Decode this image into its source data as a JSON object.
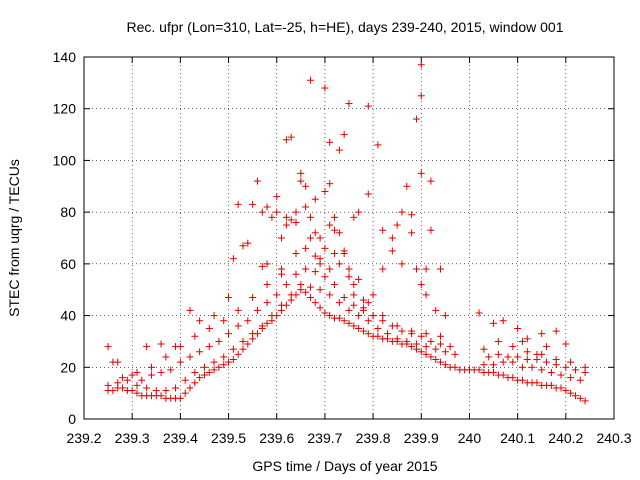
{
  "chart_data": {
    "type": "scatter",
    "title": "Rec. ufpr (Lon=310, Lat=-25, h=HE), days 239-240, 2015, window 001",
    "xlabel": "GPS time / Days of year 2015",
    "ylabel": "STEC from uqrg / TECUs",
    "xlim": [
      239.2,
      240.3
    ],
    "ylim": [
      0,
      140
    ],
    "xticks": [
      "239.2",
      "239.3",
      "239.4",
      "239.5",
      "239.6",
      "239.7",
      "239.8",
      "239.9",
      "240",
      "240.1",
      "240.2",
      "240.3"
    ],
    "yticks": [
      "0",
      "20",
      "40",
      "60",
      "80",
      "100",
      "120",
      "140"
    ],
    "grid": true,
    "marker": "plus",
    "color": "#e00000",
    "series": [
      {
        "x": [
          239.25,
          239.26,
          239.27,
          239.28,
          239.29,
          239.3,
          239.31,
          239.32,
          239.33,
          239.34,
          239.35,
          239.36,
          239.37,
          239.38,
          239.39,
          239.4,
          239.41,
          239.42,
          239.43,
          239.44,
          239.45,
          239.46,
          239.47,
          239.48,
          239.49,
          239.5,
          239.51,
          239.52,
          239.53,
          239.54,
          239.55,
          239.56,
          239.57,
          239.58,
          239.59,
          239.6,
          239.61,
          239.62,
          239.63,
          239.64,
          239.65,
          239.66,
          239.67,
          239.68,
          239.69,
          239.7,
          239.71,
          239.72,
          239.73,
          239.74,
          239.75,
          239.76,
          239.77,
          239.78,
          239.79,
          239.8,
          239.81,
          239.82,
          239.83,
          239.84,
          239.85,
          239.86,
          239.87,
          239.88,
          239.89,
          239.9,
          239.91,
          239.92,
          239.93,
          239.94,
          239.95,
          239.96,
          239.97,
          239.98,
          239.99,
          240.0,
          240.01,
          240.02,
          240.03,
          240.04,
          240.05,
          240.06,
          240.07,
          240.08,
          240.09,
          240.1,
          240.11,
          240.12,
          240.13,
          240.14,
          240.15,
          240.16,
          240.17,
          240.18,
          240.19,
          240.2,
          240.21,
          240.22,
          240.23,
          240.24,
          239.25,
          239.27,
          239.29,
          239.31,
          239.33,
          239.35,
          239.37,
          239.39,
          239.41,
          239.43,
          239.45,
          239.47,
          239.49,
          239.51,
          239.53,
          239.55,
          239.57,
          239.59,
          239.61,
          239.63,
          239.65,
          239.67,
          239.69,
          239.71,
          239.73,
          239.75,
          239.77,
          239.79,
          239.81,
          239.83,
          239.85,
          239.87,
          239.89,
          239.91,
          239.93,
          239.95,
          239.97,
          240.03,
          240.05,
          240.07,
          240.09,
          240.11,
          240.13,
          240.15,
          240.17,
          240.19,
          240.21,
          240.23,
          239.26,
          239.28,
          239.3,
          239.32,
          239.34,
          239.36,
          239.38,
          239.4,
          239.42,
          239.44,
          239.46,
          239.48,
          239.5,
          239.52,
          239.54,
          239.56,
          239.58,
          239.6,
          239.62,
          239.64,
          239.66,
          239.68,
          239.7,
          239.72,
          239.74,
          239.76,
          239.78,
          239.8,
          239.82,
          239.84,
          239.86,
          239.88,
          239.9,
          239.92,
          239.94,
          239.96,
          240.04,
          240.06,
          240.08,
          240.1,
          240.12,
          240.14,
          240.16,
          240.18,
          240.2,
          240.22,
          240.24,
          239.31,
          239.34,
          239.37,
          239.4,
          239.43,
          239.46,
          239.49,
          239.52,
          239.55,
          239.58,
          239.61,
          239.64,
          239.67,
          239.7,
          239.73,
          239.76,
          239.79,
          239.82,
          239.85,
          239.88,
          239.91,
          239.94,
          240.03,
          240.06,
          240.09,
          240.12,
          240.15,
          240.18,
          240.21,
          239.25,
          239.27,
          239.33,
          239.36,
          239.39,
          239.42,
          239.44,
          239.47,
          239.5,
          239.51,
          239.53,
          239.55,
          239.57,
          239.58,
          239.59,
          239.6,
          239.61,
          239.62,
          239.63,
          239.64,
          239.65,
          239.66,
          239.67,
          239.68,
          239.69,
          239.7,
          239.71,
          239.72,
          239.73,
          239.74,
          239.75,
          239.76,
          239.78,
          239.8,
          239.82,
          239.84,
          239.86,
          239.88,
          239.89,
          239.9,
          239.91,
          239.93,
          239.95,
          240.02,
          240.05,
          240.07,
          240.1,
          240.11,
          240.12,
          240.14,
          240.15,
          240.16,
          240.18,
          240.2,
          240.24,
          239.56,
          239.6,
          239.62,
          239.63,
          239.65,
          239.67,
          239.68,
          239.7,
          239.71,
          239.73,
          239.74,
          239.75,
          239.77,
          239.79,
          239.81,
          239.85,
          239.87,
          239.89,
          239.9,
          239.92,
          239.62,
          239.64,
          239.66,
          239.69,
          239.71,
          239.76,
          239.79,
          239.84,
          239.86,
          239.9,
          239.94,
          239.58,
          239.61,
          239.68,
          239.72,
          239.82,
          239.88,
          239.52,
          239.54,
          239.57,
          239.66,
          239.69,
          239.71,
          239.72,
          239.74,
          239.75,
          239.77,
          239.78,
          239.8,
          239.9,
          239.91,
          239.92
        ],
        "y": [
          11,
          11,
          12,
          12,
          11,
          11,
          10,
          9,
          9,
          9,
          9,
          9,
          8,
          8,
          8,
          8,
          10,
          12,
          14,
          16,
          17,
          18,
          19,
          20,
          21,
          22,
          23,
          25,
          27,
          29,
          31,
          33,
          35,
          37,
          38,
          40,
          42,
          44,
          46,
          48,
          50,
          49,
          47,
          45,
          43,
          41,
          40,
          39,
          39,
          38,
          37,
          36,
          35,
          34,
          33,
          32,
          32,
          31,
          31,
          30,
          30,
          29,
          29,
          28,
          27,
          26,
          25,
          24,
          23,
          22,
          21,
          20,
          20,
          19,
          19,
          19,
          19,
          19,
          18,
          18,
          18,
          17,
          17,
          16,
          16,
          15,
          15,
          14,
          14,
          14,
          13,
          13,
          13,
          12,
          12,
          11,
          10,
          9,
          8,
          7,
          13,
          14,
          15,
          13,
          12,
          11,
          11,
          12,
          15,
          18,
          20,
          22,
          24,
          27,
          30,
          33,
          36,
          40,
          44,
          48,
          52,
          51,
          50,
          48,
          45,
          42,
          40,
          38,
          35,
          33,
          31,
          30,
          29,
          28,
          27,
          26,
          25,
          21,
          21,
          22,
          22,
          20,
          20,
          19,
          18,
          17,
          16,
          15,
          22,
          16,
          17,
          15,
          17,
          18,
          19,
          22,
          24,
          26,
          28,
          30,
          33,
          36,
          38,
          42,
          45,
          48,
          52,
          56,
          58,
          57,
          55,
          52,
          47,
          44,
          42,
          40,
          38,
          36,
          34,
          33,
          32,
          30,
          29,
          28,
          24,
          25,
          24,
          24,
          23,
          23,
          22,
          21,
          20,
          19,
          18,
          18,
          20,
          24,
          28,
          32,
          35,
          38,
          42,
          47,
          52,
          58,
          64,
          70,
          66,
          60,
          52,
          45,
          40,
          36,
          34,
          33,
          32,
          27,
          30,
          28,
          26,
          25,
          23,
          22,
          28,
          22,
          28,
          29,
          28,
          42,
          38,
          40,
          47,
          62,
          67,
          83,
          80,
          82,
          78,
          80,
          70,
          75,
          77,
          80,
          92,
          82,
          78,
          72,
          70,
          88,
          91,
          78,
          72,
          65,
          55,
          48,
          43,
          48,
          58,
          65,
          60,
          72,
          58,
          52,
          48,
          42,
          40,
          41,
          37,
          38,
          35,
          30,
          31,
          25,
          33,
          28,
          34,
          29,
          20,
          92,
          86,
          108,
          109,
          95,
          131,
          85,
          128,
          107,
          104,
          110,
          122,
          80,
          121,
          106,
          75,
          90,
          116,
          137,
          73,
          78,
          76,
          90,
          62,
          75,
          78,
          87,
          70,
          80,
          95,
          58,
          60,
          56,
          63,
          64,
          73,
          79,
          83,
          68,
          59,
          66,
          60,
          58,
          73,
          64,
          58,
          54,
          46,
          40,
          125,
          58,
          92
        ]
      }
    ]
  }
}
